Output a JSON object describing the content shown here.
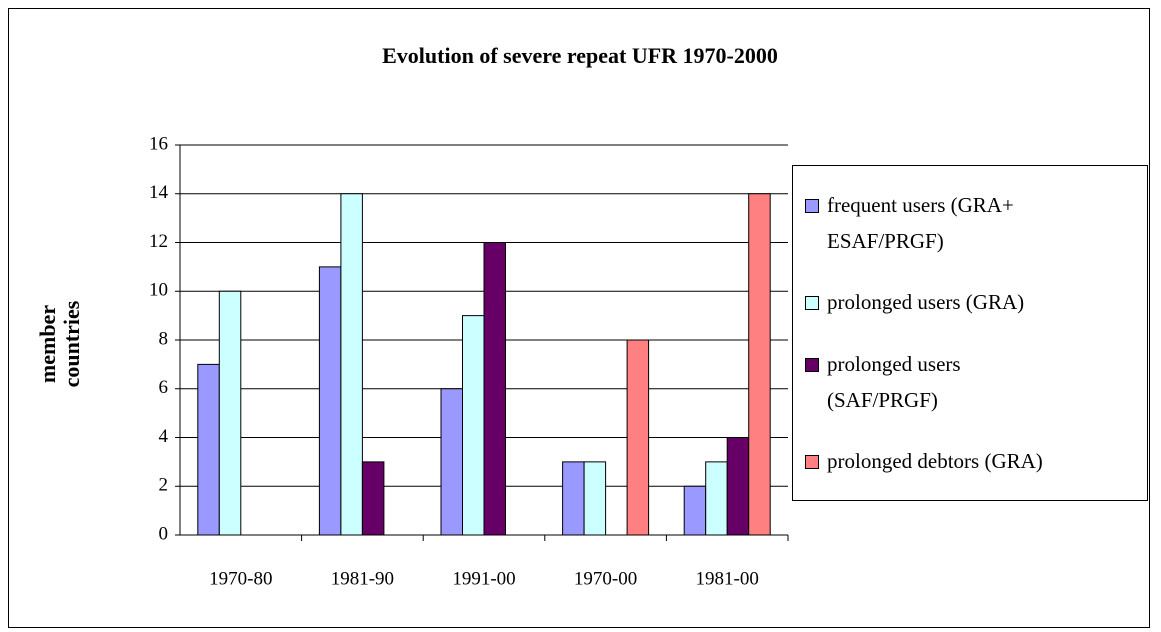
{
  "chart_data": {
    "type": "bar",
    "title": "Evolution of severe repeat UFR 1970-2000",
    "y_label": "member countries",
    "categories": [
      "1970-80",
      "1981-90",
      "1991-00",
      "1970-00",
      "1981-00"
    ],
    "series": [
      {
        "name": "frequent users (GRA+ ESAF/PRGF)",
        "color": "#9999ff",
        "values": [
          7,
          11,
          6,
          3,
          2
        ]
      },
      {
        "name": "prolonged users (GRA)",
        "color": "#ccffff",
        "values": [
          10,
          14,
          9,
          3,
          3
        ]
      },
      {
        "name": "prolonged users (SAF/PRGF)",
        "color": "#660066",
        "values": [
          null,
          3,
          12,
          null,
          4
        ]
      },
      {
        "name": "prolonged debtors (GRA)",
        "color": "#ff8080",
        "values": [
          null,
          null,
          null,
          8,
          14
        ]
      }
    ],
    "ylim": [
      0,
      16
    ],
    "yticks": [
      0,
      2,
      4,
      6,
      8,
      10,
      12,
      14,
      16
    ],
    "grid": true,
    "legend": "right"
  }
}
